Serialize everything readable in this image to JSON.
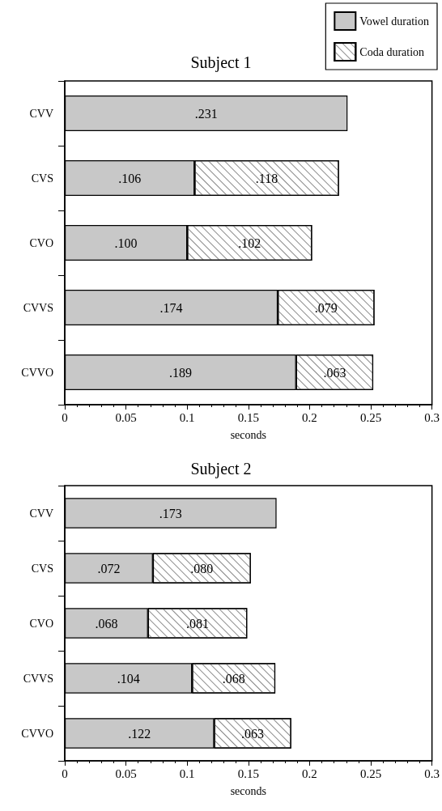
{
  "chart_data": [
    {
      "type": "bar",
      "orientation": "horizontal",
      "stacked": true,
      "title": "Subject 1",
      "xlabel": "seconds",
      "categories": [
        "CVV",
        "CVS",
        "CVO",
        "CVVS",
        "CVVO"
      ],
      "series": [
        {
          "name": "Vowel duration",
          "color": "#c8c8c8",
          "values": [
            0.231,
            0.106,
            0.1,
            0.174,
            0.189
          ],
          "value_labels": [
            ".231",
            ".106",
            ".100",
            ".174",
            ".189"
          ]
        },
        {
          "name": "Coda duration",
          "color": "#ffffff",
          "values": [
            null,
            0.118,
            0.102,
            0.079,
            0.063
          ],
          "value_labels": [
            null,
            ".118",
            ".102",
            ".079",
            ".063"
          ]
        }
      ],
      "xlim": [
        0,
        0.3
      ],
      "xticks": [
        0,
        0.05,
        0.1,
        0.15,
        0.2,
        0.25,
        0.3
      ],
      "legend": "top right"
    },
    {
      "type": "bar",
      "orientation": "horizontal",
      "stacked": true,
      "title": "Subject 2",
      "xlabel": "seconds",
      "categories": [
        "CVV",
        "CVS",
        "CVO",
        "CVVS",
        "CVVO"
      ],
      "series": [
        {
          "color": "#c8c8c8",
          "values": [
            0.173,
            0.072,
            0.068,
            0.104,
            0.122
          ],
          "value_labels": [
            ".173",
            ".072",
            ".068",
            ".104",
            ".122"
          ]
        },
        {
          "color": "#ffffff",
          "values": [
            null,
            0.08,
            0.081,
            0.068,
            0.063
          ],
          "value_labels": [
            null,
            ".080",
            ".081",
            ".068",
            ".063"
          ]
        }
      ],
      "xlim": [
        0,
        0.3
      ],
      "xticks": [
        0,
        0.05,
        0.1,
        0.15,
        0.2,
        0.25,
        0.3
      ]
    }
  ]
}
